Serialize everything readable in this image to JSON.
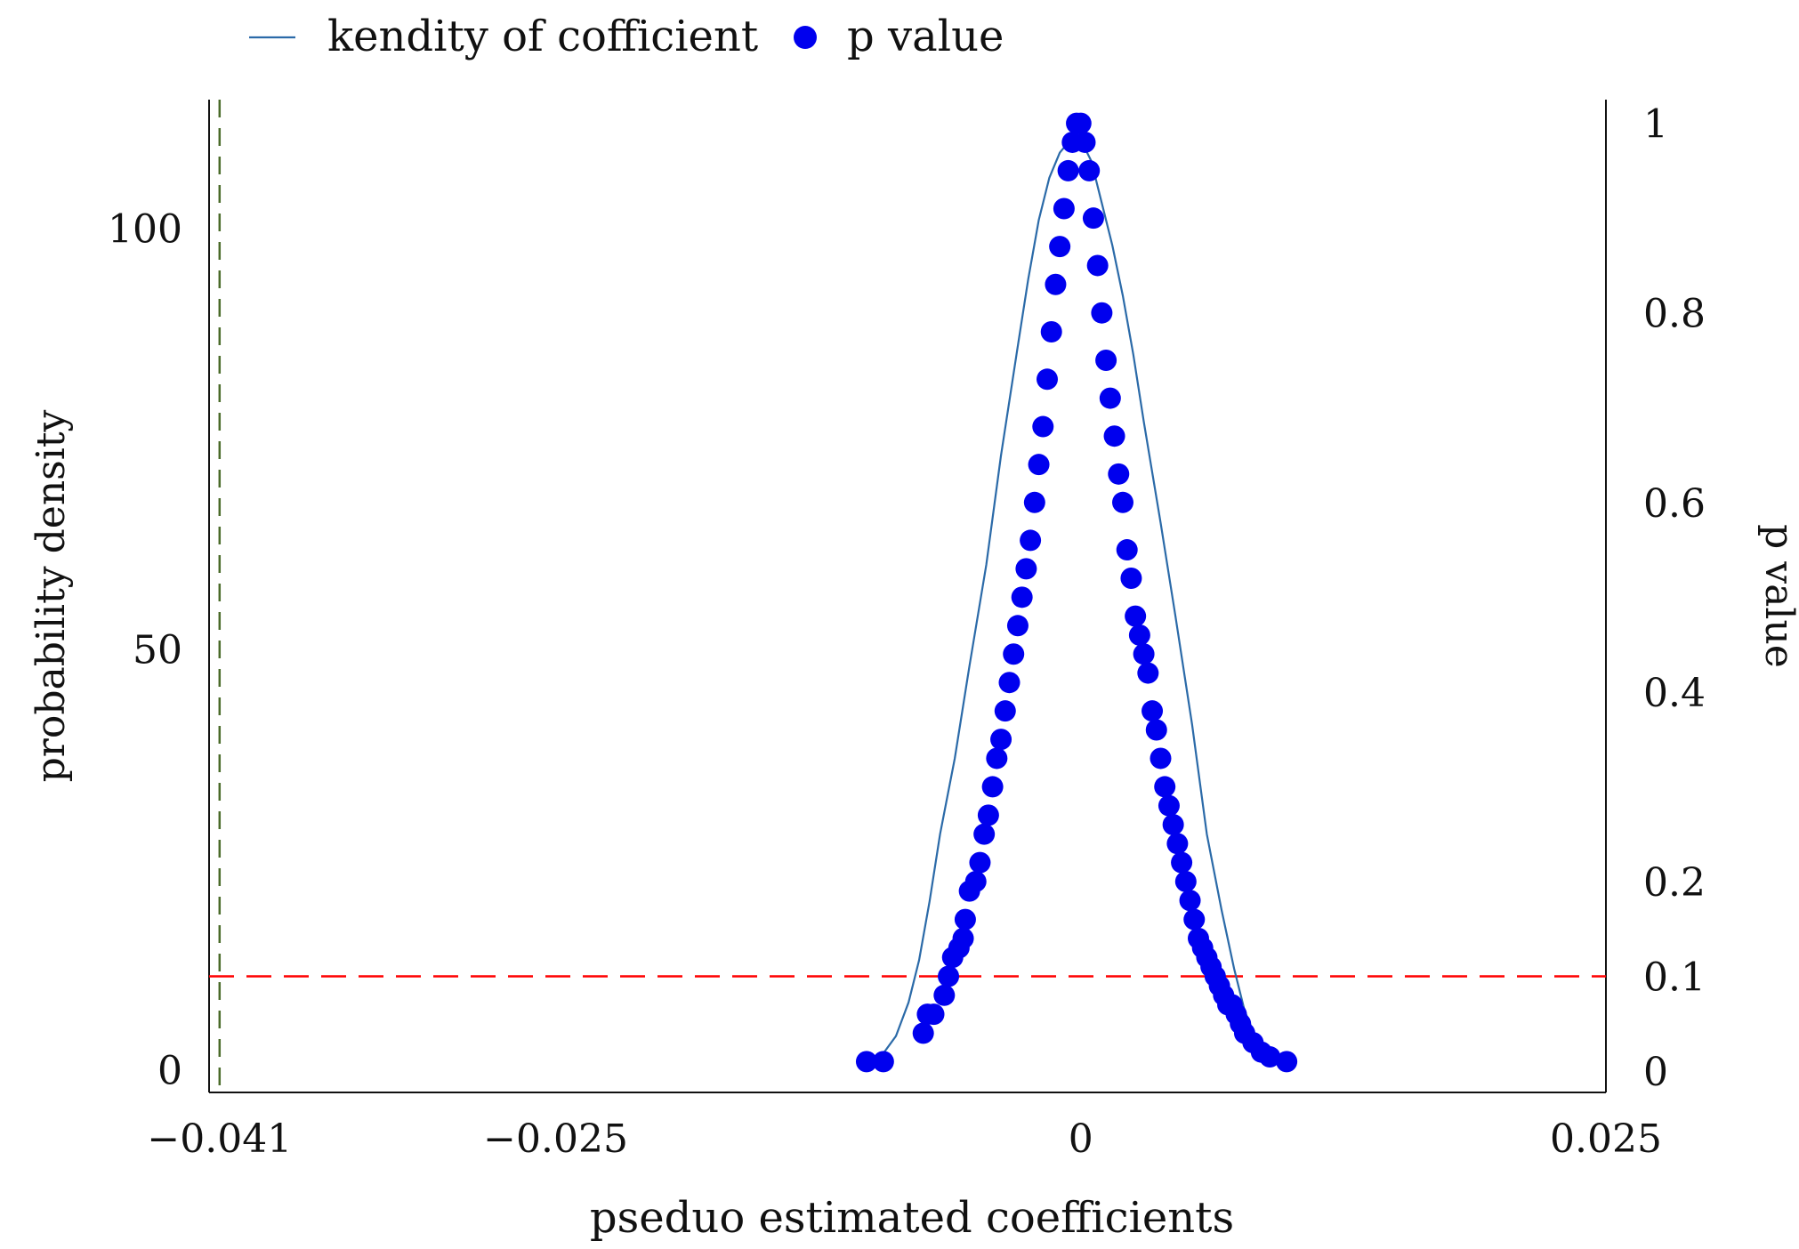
{
  "chart_data": {
    "type": "line",
    "title": "",
    "xlabel": "pseduo estimated coefficients",
    "ylabel_left": "probability density",
    "ylabel_right": "p value",
    "xlim": [
      -0.0415,
      0.025
    ],
    "ylim_left": [
      -2.7,
      115.3
    ],
    "ylim_right": [
      -0.0225,
      1.025
    ],
    "x_ticks": [
      -0.041,
      -0.025,
      0,
      0.025
    ],
    "x_tick_labels": [
      "−0.041",
      "−0.025",
      "0",
      "0.025"
    ],
    "y_left_ticks": [
      0,
      50,
      100
    ],
    "y_left_tick_labels": [
      "0",
      "50",
      "100"
    ],
    "y_right_ticks": [
      0,
      0.1,
      0.2,
      0.4,
      0.6,
      0.8,
      1
    ],
    "y_right_tick_labels": [
      "0",
      "0.1",
      "0.2",
      "0.4",
      "0.6",
      "0.8",
      "1"
    ],
    "legend": {
      "position": "top-left",
      "entries": [
        "kendity of cofficient",
        "p value"
      ]
    },
    "grid": false,
    "reference_lines": [
      {
        "axis": "x",
        "value": -0.041,
        "style": "dashed",
        "color": "#4a6b2a"
      },
      {
        "axis": "y_right",
        "value": 0.1,
        "style": "dashed",
        "color": "#ff0000"
      }
    ],
    "series": [
      {
        "name": "kendity of cofficient",
        "kind": "line",
        "axis": "left",
        "color": "#2b6aa8",
        "x": [
          -0.0095,
          -0.0088,
          -0.0082,
          -0.0077,
          -0.0072,
          -0.0067,
          -0.006,
          -0.0053,
          -0.0045,
          -0.0038,
          -0.003,
          -0.0025,
          -0.002,
          -0.0015,
          -0.001,
          -0.0005,
          0.0,
          0.0005,
          0.001,
          0.0015,
          0.002,
          0.0025,
          0.003,
          0.0038,
          0.0045,
          0.0053,
          0.006,
          0.0067,
          0.0073,
          0.0078,
          0.0083,
          0.0088,
          0.0093
        ],
        "y": [
          1.6,
          4,
          8,
          13,
          20,
          28,
          37,
          48,
          60,
          73,
          86,
          94,
          101,
          106,
          109,
          110.5,
          110.5,
          108,
          103,
          98,
          92,
          85,
          77,
          65,
          54,
          41,
          28,
          19,
          12,
          7,
          4,
          2,
          1.2
        ]
      },
      {
        "name": "p value",
        "kind": "scatter",
        "axis": "right",
        "color": "#0000ee",
        "x": [
          -0.0102,
          -0.0094,
          -0.0075,
          -0.0073,
          -0.007,
          -0.0065,
          -0.0063,
          -0.0061,
          -0.0058,
          -0.0056,
          -0.0055,
          -0.0053,
          -0.005,
          -0.0048,
          -0.0046,
          -0.0044,
          -0.0042,
          -0.004,
          -0.0038,
          -0.0036,
          -0.0034,
          -0.0032,
          -0.003,
          -0.0028,
          -0.0026,
          -0.0024,
          -0.0022,
          -0.002,
          -0.0018,
          -0.0016,
          -0.0014,
          -0.0012,
          -0.001,
          -0.0008,
          -0.0006,
          -0.0004,
          -0.0002,
          0.0,
          0.0002,
          0.0004,
          0.0006,
          0.0008,
          0.001,
          0.0012,
          0.0014,
          0.0016,
          0.0018,
          0.002,
          0.0022,
          0.0024,
          0.0026,
          0.0028,
          0.003,
          0.0032,
          0.0034,
          0.0036,
          0.0038,
          0.004,
          0.0042,
          0.0044,
          0.0046,
          0.0048,
          0.005,
          0.0052,
          0.0054,
          0.0056,
          0.0058,
          0.006,
          0.0062,
          0.0064,
          0.0066,
          0.0068,
          0.007,
          0.0072,
          0.0074,
          0.0076,
          0.0078,
          0.0082,
          0.0086,
          0.009,
          0.0098
        ],
        "y": [
          0.01,
          0.01,
          0.04,
          0.06,
          0.06,
          0.08,
          0.1,
          0.12,
          0.13,
          0.14,
          0.16,
          0.19,
          0.2,
          0.22,
          0.25,
          0.27,
          0.3,
          0.33,
          0.35,
          0.38,
          0.41,
          0.44,
          0.47,
          0.5,
          0.53,
          0.56,
          0.6,
          0.64,
          0.68,
          0.73,
          0.78,
          0.83,
          0.87,
          0.91,
          0.95,
          0.98,
          1.0,
          1.0,
          0.98,
          0.95,
          0.9,
          0.85,
          0.8,
          0.75,
          0.71,
          0.67,
          0.63,
          0.6,
          0.55,
          0.52,
          0.48,
          0.46,
          0.44,
          0.42,
          0.38,
          0.36,
          0.33,
          0.3,
          0.28,
          0.26,
          0.24,
          0.22,
          0.2,
          0.18,
          0.16,
          0.14,
          0.13,
          0.12,
          0.11,
          0.1,
          0.09,
          0.08,
          0.07,
          0.07,
          0.06,
          0.05,
          0.04,
          0.03,
          0.02,
          0.015,
          0.01
        ]
      }
    ]
  }
}
